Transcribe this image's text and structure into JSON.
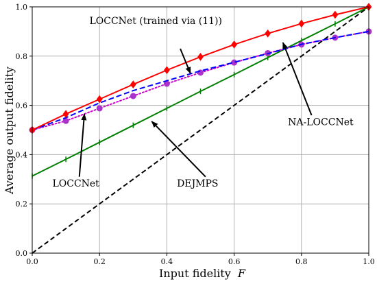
{
  "chart_data": {
    "type": "line",
    "xlabel": "Input fidelity",
    "xlabel_symbol": "F",
    "ylabel": "Average output fidelity",
    "xlim": [
      0,
      1
    ],
    "ylim": [
      0,
      1
    ],
    "grid": true,
    "xticks": [
      "0.0",
      "0.2",
      "0.4",
      "0.6",
      "0.8",
      "1.0"
    ],
    "yticks": [
      "0.0",
      "0.2",
      "0.4",
      "0.6",
      "0.8",
      "1.0"
    ],
    "colors": {
      "red": "#ff0000",
      "blue": "#0000ff",
      "magenta": "#cc00cc",
      "marker_purple": "#aa33cc",
      "green": "#008000",
      "black": "#000000",
      "grid": "#b0b0b0"
    },
    "series": [
      {
        "id": "red",
        "style": "solid",
        "marker": "diamond",
        "x": [
          0.0,
          0.1,
          0.2,
          0.3,
          0.4,
          0.5,
          0.6,
          0.7,
          0.8,
          0.9,
          1.0
        ],
        "y": [
          0.5,
          0.565,
          0.625,
          0.685,
          0.743,
          0.797,
          0.847,
          0.892,
          0.932,
          0.968,
          1.0
        ]
      },
      {
        "id": "blue",
        "style": "dashed",
        "marker": "none",
        "x": [
          0.0,
          0.1,
          0.2,
          0.3,
          0.4,
          0.5,
          0.6,
          0.7,
          0.8,
          0.9,
          1.0
        ],
        "y": [
          0.5,
          0.55,
          0.61,
          0.66,
          0.7,
          0.74,
          0.775,
          0.81,
          0.848,
          0.875,
          0.9
        ]
      },
      {
        "id": "magenta",
        "style": "dotted",
        "marker": "circle",
        "x": [
          0.0,
          0.1,
          0.2,
          0.3,
          0.4,
          0.5,
          0.6,
          0.7,
          0.8,
          0.9,
          1.0
        ],
        "y": [
          0.5,
          0.537,
          0.588,
          0.638,
          0.688,
          0.733,
          0.774,
          0.812,
          0.847,
          0.875,
          0.9
        ]
      },
      {
        "id": "green",
        "style": "solid",
        "marker": "tick",
        "x": [
          0.0,
          0.1,
          0.2,
          0.3,
          0.4,
          0.5,
          0.6,
          0.7,
          0.8,
          0.9,
          1.0
        ],
        "y": [
          0.313,
          0.381,
          0.45,
          0.519,
          0.588,
          0.657,
          0.725,
          0.794,
          0.863,
          0.931,
          1.0
        ]
      },
      {
        "id": "black",
        "style": "dashed",
        "marker": "none",
        "x": [
          0.0,
          1.0
        ],
        "y": [
          0.0,
          1.0
        ]
      }
    ],
    "annotations": [
      {
        "text": "LOCCNet (trained via (11))",
        "pos": [
          0.17,
          0.93
        ],
        "anchor": "start",
        "arrow_from": [
          0.44,
          0.83
        ],
        "arrow_to": [
          0.47,
          0.73
        ]
      },
      {
        "text": "LOCCNet",
        "pos": [
          0.06,
          0.27
        ],
        "anchor": "start",
        "arrow_from": [
          0.14,
          0.31
        ],
        "arrow_to": [
          0.155,
          0.565
        ]
      },
      {
        "text": "DEJMPS",
        "pos": [
          0.43,
          0.27
        ],
        "anchor": "start",
        "arrow_from": [
          0.515,
          0.31
        ],
        "arrow_to": [
          0.355,
          0.535
        ]
      },
      {
        "text": "NA-LOCCNet",
        "pos": [
          0.76,
          0.52
        ],
        "anchor": "start",
        "arrow_from": [
          0.83,
          0.56
        ],
        "arrow_to": [
          0.745,
          0.855
        ]
      }
    ]
  }
}
